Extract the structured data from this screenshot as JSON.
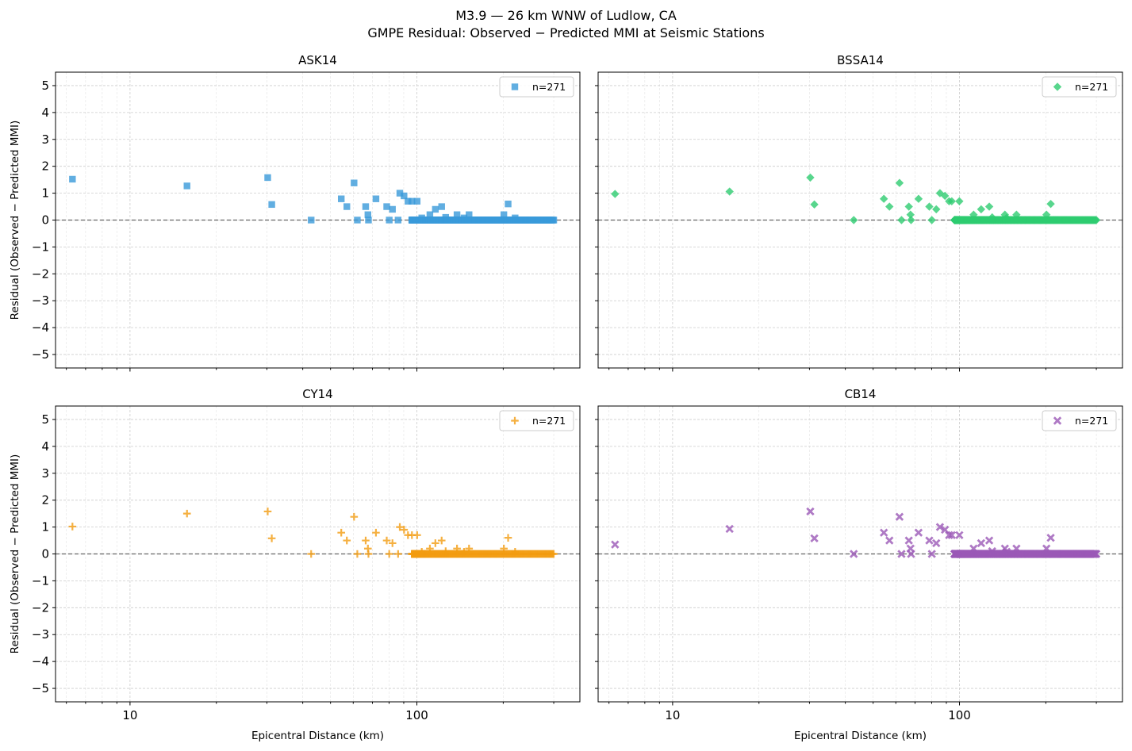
{
  "figure": {
    "title_line1": "M3.9 — 26 km WNW of Ludlow, CA",
    "title_line2": "GMPE Residual: Observed − Predicted MMI at Seismic Stations"
  },
  "chart_data": [
    {
      "type": "scatter",
      "title": "ASK14",
      "xlabel": "",
      "ylabel": "Residual (Observed − Predicted MMI)",
      "xscale": "log",
      "xlim": [
        5.5,
        370
      ],
      "ylim": [
        -5.5,
        5.5
      ],
      "xticks": [
        "10",
        "100"
      ],
      "yticks": [
        "5",
        "4",
        "3",
        "2",
        "1",
        "0",
        "−1",
        "−2",
        "−3",
        "−4",
        "−5"
      ],
      "grid": true,
      "reference_line_y": 0,
      "legend": "n=271",
      "legend_position": "upper right",
      "marker": "square",
      "color": "#3a9ad9",
      "series": [
        {
          "x": [
            6.3,
            15.8,
            30.2,
            31.2,
            42.8,
            54.5,
            57,
            60.4,
            62,
            66.3,
            67.5,
            67.8,
            72,
            78.5,
            80.1,
            82.2,
            86,
            87.2,
            90.2,
            93.1,
            96.1,
            98.9,
            100.2,
            104,
            111,
            116,
            122,
            126,
            138,
            146,
            152,
            201,
            208,
            220
          ],
          "y": [
            1.52,
            1.27,
            1.58,
            0.58,
            0,
            0.79,
            0.5,
            1.38,
            0,
            0.5,
            0.2,
            0,
            0.79,
            0.5,
            0,
            0.4,
            0,
            1.0,
            0.9,
            0.7,
            0.7,
            0,
            0.7,
            0.08,
            0.2,
            0.4,
            0.5,
            0.1,
            0.2,
            0.08,
            0.2,
            0.2,
            0.6,
            0.08
          ]
        }
      ],
      "baseline_cluster": {
        "x_from": 96,
        "x_to": 300,
        "count": 237,
        "y": 0
      }
    },
    {
      "type": "scatter",
      "title": "BSSA14",
      "xlabel": "",
      "ylabel": "",
      "xscale": "log",
      "xlim": [
        5.5,
        370
      ],
      "ylim": [
        -5.5,
        5.5
      ],
      "xticks": [
        "10",
        "100"
      ],
      "yticks": [],
      "grid": true,
      "reference_line_y": 0,
      "legend": "n=271",
      "legend_position": "upper right",
      "marker": "diamond",
      "color": "#2ecc71",
      "series": [
        {
          "x": [
            6.3,
            15.8,
            30.2,
            31.2,
            42.8,
            54.5,
            57,
            61.8,
            62.8,
            66.6,
            67.5,
            67.8,
            72,
            78.5,
            80.1,
            83,
            85.5,
            89,
            92,
            94,
            99.9,
            112,
            119,
            127,
            130,
            144,
            146,
            158,
            201,
            208
          ],
          "y": [
            0.97,
            1.06,
            1.58,
            0.58,
            0,
            0.79,
            0.5,
            1.38,
            0,
            0.5,
            0.2,
            0,
            0.79,
            0.5,
            0,
            0.4,
            1.0,
            0.9,
            0.7,
            0.7,
            0.7,
            0.2,
            0.4,
            0.5,
            0.1,
            0.2,
            0.08,
            0.2,
            0.2,
            0.6
          ]
        }
      ],
      "baseline_cluster": {
        "x_from": 96,
        "x_to": 300,
        "count": 241,
        "y": 0
      }
    },
    {
      "type": "scatter",
      "title": "CY14",
      "xlabel": "Epicentral Distance (km)",
      "ylabel": "Residual (Observed − Predicted MMI)",
      "xscale": "log",
      "xlim": [
        5.5,
        370
      ],
      "ylim": [
        -5.5,
        5.5
      ],
      "xticks": [
        "10",
        "100"
      ],
      "yticks": [
        "5",
        "4",
        "3",
        "2",
        "1",
        "0",
        "−1",
        "−2",
        "−3",
        "−4",
        "−5"
      ],
      "grid": true,
      "reference_line_y": 0,
      "legend": "n=271",
      "legend_position": "upper right",
      "marker": "plus",
      "color": "#f39c12",
      "series": [
        {
          "x": [
            6.3,
            15.8,
            30.2,
            31.2,
            42.8,
            54.5,
            57,
            60.4,
            62,
            66.3,
            67.5,
            67.8,
            72,
            78.5,
            80.1,
            82.2,
            86,
            87.2,
            90.2,
            93.1,
            96.1,
            98.9,
            100.2,
            104,
            111,
            116,
            122,
            126,
            138,
            146,
            152,
            201,
            208,
            220
          ],
          "y": [
            1.02,
            1.5,
            1.58,
            0.58,
            0,
            0.79,
            0.5,
            1.38,
            0,
            0.5,
            0.2,
            0,
            0.79,
            0.5,
            0,
            0.4,
            0,
            1.0,
            0.9,
            0.7,
            0.7,
            0,
            0.7,
            0.08,
            0.2,
            0.4,
            0.5,
            0.1,
            0.2,
            0.08,
            0.2,
            0.2,
            0.6,
            0.08
          ]
        }
      ],
      "baseline_cluster": {
        "x_from": 96,
        "x_to": 300,
        "count": 237,
        "y": 0
      }
    },
    {
      "type": "scatter",
      "title": "CB14",
      "xlabel": "Epicentral Distance (km)",
      "ylabel": "",
      "xscale": "log",
      "xlim": [
        5.5,
        370
      ],
      "ylim": [
        -5.5,
        5.5
      ],
      "xticks": [
        "10",
        "100"
      ],
      "yticks": [],
      "grid": true,
      "reference_line_y": 0,
      "legend": "n=271",
      "legend_position": "upper right",
      "marker": "x",
      "color": "#9b59b6",
      "series": [
        {
          "x": [
            6.3,
            15.8,
            30.2,
            31.2,
            42.8,
            54.5,
            57,
            61.8,
            62.8,
            66.6,
            67.5,
            67.8,
            72,
            78.5,
            80.1,
            83,
            85.5,
            89,
            92,
            94,
            99.9,
            112,
            119,
            127,
            130,
            144,
            146,
            158,
            201,
            208
          ],
          "y": [
            0.35,
            0.93,
            1.58,
            0.58,
            0,
            0.79,
            0.5,
            1.38,
            0,
            0.5,
            0.2,
            0,
            0.79,
            0.5,
            0,
            0.4,
            1.0,
            0.9,
            0.7,
            0.7,
            0.7,
            0.2,
            0.4,
            0.5,
            0.1,
            0.2,
            0.08,
            0.2,
            0.2,
            0.6
          ]
        }
      ],
      "baseline_cluster": {
        "x_from": 96,
        "x_to": 300,
        "count": 241,
        "y": 0
      }
    }
  ]
}
